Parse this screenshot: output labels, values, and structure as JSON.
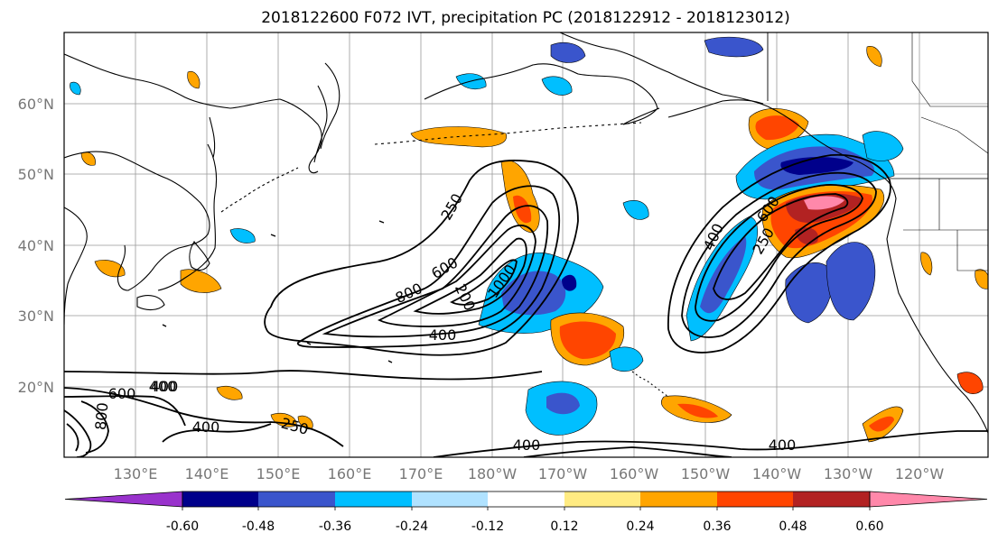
{
  "title": "2018122600 F072 IVT, precipitation PC (2018122912 - 2018123012)",
  "lat_labels": [
    "60°N",
    "50°N",
    "40°N",
    "30°N",
    "20°N"
  ],
  "lon_labels": [
    "130°E",
    "140°E",
    "150°E",
    "160°E",
    "170°E",
    "180°W",
    "170°W",
    "160°W",
    "150°W",
    "140°W",
    "130°W",
    "120°W"
  ],
  "colorbar": {
    "colors": [
      "#9932cc",
      "#00008b",
      "#3a55cc",
      "#00bfff",
      "#b0e2ff",
      "#ffffff",
      "#ffeb82",
      "#ffa500",
      "#ff4500",
      "#b22222",
      "#ff88aa"
    ],
    "tick_labels": [
      "-0.60",
      "-0.48",
      "-0.36",
      "-0.24",
      "-0.12",
      "0.12",
      "0.24",
      "0.36",
      "0.48",
      "0.60"
    ]
  },
  "contour_labels": [
    "250",
    "600",
    "800",
    "200",
    "1000",
    "400",
    "400",
    "250",
    "600",
    "400",
    "600",
    "400",
    "800",
    "250",
    "400",
    "400",
    "400"
  ]
}
